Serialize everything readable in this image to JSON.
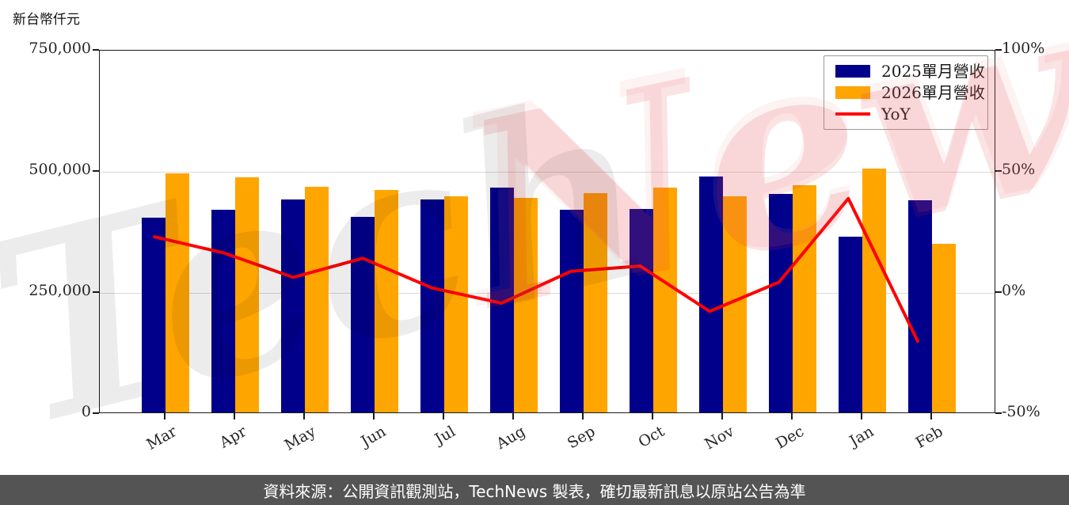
{
  "header": {
    "unit_label": "新台幣仟元"
  },
  "chart_data": {
    "type": "bar+line",
    "title": "",
    "categories": [
      "Mar",
      "Apr",
      "May",
      "Jun",
      "Jul",
      "Aug",
      "Sep",
      "Oct",
      "Nov",
      "Dec",
      "Jan",
      "Feb"
    ],
    "series": [
      {
        "name": "2025單月營收",
        "type": "bar",
        "color": "#00008B",
        "values": [
          401600,
          418000,
          439700,
          403300,
          439700,
          464300,
          418000,
          419600,
          486200,
          450700,
          362400,
          438700
        ]
      },
      {
        "name": "2026單月營收",
        "type": "bar",
        "color": "#FFA500",
        "values": [
          493300,
          485100,
          465900,
          459400,
          446900,
          442500,
          453500,
          464300,
          446900,
          468700,
          502600,
          348800
        ]
      },
      {
        "name": "YoY",
        "type": "line",
        "axis": "right",
        "color": "#FF0000",
        "values": [
          22.8,
          16.1,
          6.0,
          13.9,
          1.6,
          -4.7,
          8.5,
          10.7,
          -8.1,
          4.0,
          38.7,
          -20.5
        ]
      }
    ],
    "left_axis": {
      "unit": "新台幣仟元",
      "tick_labels": [
        "0",
        "250,000",
        "500,000",
        "750,000"
      ],
      "range": [
        0,
        750000
      ]
    },
    "right_axis": {
      "tick_labels": [
        "-50%",
        "0%",
        "50%",
        "100%"
      ],
      "range": [
        -50,
        100
      ]
    },
    "grid": true,
    "legend_position": "top-right"
  },
  "watermark": {
    "text_gray": "Tech",
    "text_red": "News"
  },
  "footer": {
    "text": "資料來源：公開資訊觀測站，TechNews 製表，確切最新訊息以原站公告為準"
  },
  "colors": {
    "bar_2025": "#00008B",
    "bar_2026": "#FFA500",
    "yoy_line": "#FF0000",
    "footer_bg": "#545454",
    "grid": "#D9D9D9",
    "axis": "#1A1A1A"
  }
}
